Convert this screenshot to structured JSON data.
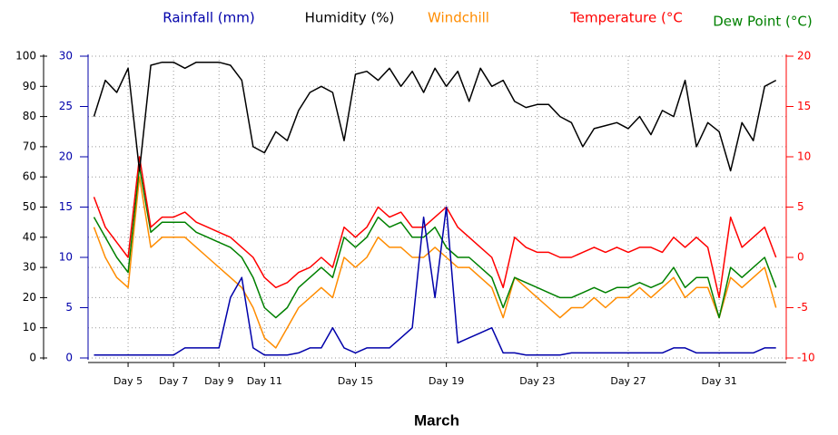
{
  "chart_data": {
    "type": "line",
    "legend": "top",
    "grid": true,
    "xlabel": "March",
    "x": [
      3.5,
      4,
      4.5,
      5,
      5.5,
      6,
      6.5,
      7,
      7.5,
      8,
      8.5,
      9,
      9.5,
      10,
      10.5,
      11,
      11.5,
      12,
      12.5,
      13,
      13.5,
      14,
      14.5,
      15,
      15.5,
      16,
      16.5,
      17,
      17.5,
      18,
      18.5,
      19,
      19.5,
      20,
      20.5,
      21,
      21.5,
      22,
      22.5,
      23,
      23.5,
      24,
      24.5,
      25,
      25.5,
      26,
      26.5,
      27,
      27.5,
      28,
      28.5,
      29,
      29.5,
      30,
      30.5,
      31,
      31.5,
      32,
      32.5,
      33,
      33.5
    ],
    "xlim": [
      3.24,
      33.95
    ],
    "xticks": [
      {
        "value": 5,
        "label": "Day 5"
      },
      {
        "value": 7,
        "label": "Day 7"
      },
      {
        "value": 9,
        "label": "Day 9"
      },
      {
        "value": 11,
        "label": "Day 11"
      },
      {
        "value": 15,
        "label": "Day 15"
      },
      {
        "value": 19,
        "label": "Day 19"
      },
      {
        "value": 23,
        "label": "Day 23"
      },
      {
        "value": 27,
        "label": "Day 27"
      },
      {
        "value": 31,
        "label": "Day 31"
      }
    ],
    "ylim": [
      0,
      100
    ],
    "yticks": [
      0,
      10,
      20,
      30,
      40,
      50,
      60,
      70,
      80,
      90,
      100
    ],
    "y2lim": [
      -10,
      20
    ],
    "y2ticks": [
      -10,
      -5,
      0,
      5,
      10,
      15,
      20
    ],
    "y2color": "#ff0000",
    "y3lim": [
      0,
      30
    ],
    "y3ticks": [
      0,
      5,
      10,
      15,
      20,
      25,
      30
    ],
    "y3color": "#0000aa",
    "series": [
      {
        "name": "Windchill",
        "color": "#ff8c00",
        "axis": "y2",
        "values": [
          3,
          0,
          -2,
          -3,
          8,
          1,
          2,
          2,
          2,
          1,
          0,
          -1,
          -2,
          -3,
          -5,
          -8,
          -9,
          -7,
          -5,
          -4,
          -3,
          -4,
          0,
          -1,
          0,
          2,
          1,
          1,
          0,
          0,
          1,
          0,
          -1,
          -1,
          -2,
          -3,
          -6,
          -2,
          -3,
          -4,
          -5,
          -6,
          -5,
          -5,
          -4,
          -5,
          -4,
          -4,
          -3,
          -4,
          -3,
          -2,
          -4,
          -3,
          -3,
          -6,
          -2,
          -3,
          -2,
          -1,
          -5
        ]
      },
      {
        "name": "Dew Point (°C)",
        "color": "#008000",
        "axis": "y2",
        "values": [
          4,
          2,
          0,
          -1.5,
          9,
          2.5,
          3.5,
          3.5,
          3.5,
          2.5,
          2,
          1.5,
          1,
          0,
          -2,
          -5,
          -6,
          -5,
          -3,
          -2,
          -1,
          -2,
          2,
          1,
          2,
          4,
          3,
          3.5,
          2,
          2,
          3,
          1,
          0,
          0,
          -1,
          -2,
          -5,
          -2,
          -2.5,
          -3,
          -3.5,
          -4,
          -4,
          -3.5,
          -3,
          -3.5,
          -3,
          -3,
          -2.5,
          -3,
          -2.5,
          -1,
          -3,
          -2,
          -2,
          -6,
          -1,
          -2,
          -1,
          0,
          -3
        ]
      },
      {
        "name": "Temperature (°C",
        "color": "#ff0000",
        "axis": "y2",
        "values": [
          6,
          3,
          1.5,
          0,
          10,
          3,
          4,
          4,
          4.5,
          3.5,
          3,
          2.5,
          2,
          1,
          0,
          -2,
          -3,
          -2.5,
          -1.5,
          -1,
          0,
          -1,
          3,
          2,
          3,
          5,
          4,
          4.5,
          3,
          3,
          4,
          5,
          3,
          2,
          1,
          0,
          -3,
          2,
          1,
          0.5,
          0.5,
          0,
          0,
          0.5,
          1,
          0.5,
          1,
          0.5,
          1,
          1,
          0.5,
          2,
          1,
          2,
          1,
          -4,
          4,
          1,
          2,
          3,
          0
        ]
      },
      {
        "name": "Humidity (%)",
        "color": "#000000",
        "values": [
          80,
          92,
          88,
          96,
          62,
          97,
          98,
          98,
          96,
          98,
          98,
          98,
          97,
          92,
          70,
          68,
          75,
          72,
          82,
          88,
          90,
          88,
          72,
          94,
          95,
          92,
          96,
          90,
          95,
          88,
          96,
          90,
          95,
          85,
          96,
          90,
          92,
          85,
          83,
          84,
          84,
          80,
          78,
          70,
          76,
          77,
          78,
          76,
          80,
          74,
          82,
          80,
          92,
          70,
          78,
          75,
          62,
          78,
          72,
          90,
          92
        ]
      },
      {
        "name": "Rainfall (mm)",
        "color": "#0000aa",
        "axis": "y3",
        "values": [
          0.3,
          0.3,
          0.3,
          0.3,
          0.3,
          0.3,
          0.3,
          0.3,
          1,
          1,
          1,
          1,
          6,
          8,
          1,
          0.3,
          0.3,
          0.3,
          0.5,
          1,
          1,
          3,
          1,
          0.5,
          1,
          1,
          1,
          2,
          3,
          14,
          6,
          15,
          1.5,
          2,
          2.5,
          3,
          0.5,
          0.5,
          0.3,
          0.3,
          0.3,
          0.3,
          0.5,
          0.5,
          0.5,
          0.5,
          0.5,
          0.5,
          0.5,
          0.5,
          0.5,
          1,
          1,
          0.5,
          0.5,
          0.5,
          0.5,
          0.5,
          0.5,
          1,
          1
        ]
      }
    ]
  }
}
